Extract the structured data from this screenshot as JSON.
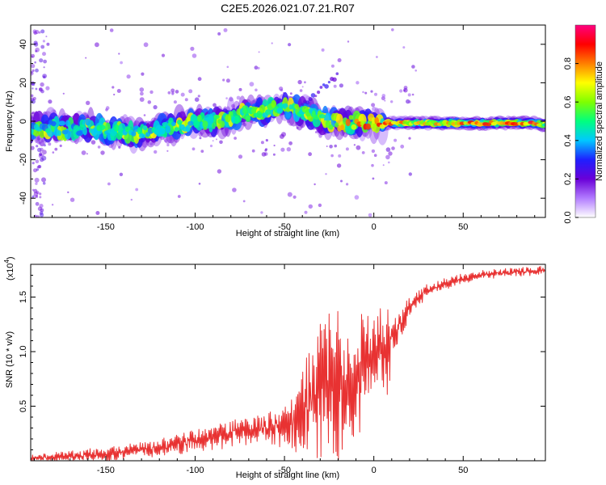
{
  "title": "C2E5.2026.021.07.21.R07",
  "chart_data": [
    {
      "type": "heatmap",
      "name": "spectrogram",
      "xlabel": "Height of straight line (km)",
      "ylabel": "Frequency (Hz)",
      "xlim": [
        -192,
        96
      ],
      "ylim": [
        -50,
        50
      ],
      "xticks": [
        -150,
        -100,
        -50,
        0,
        50
      ],
      "xtick_labels": [
        "-150",
        "-100",
        "-50",
        "0",
        "50"
      ],
      "yticks": [
        -40,
        -20,
        0,
        20,
        40
      ],
      "ytick_labels": [
        "-40",
        "-20",
        "0",
        "20",
        "40"
      ],
      "colorbar": {
        "label": "Normalized spectral amplitude",
        "range": [
          0,
          1
        ],
        "ticks": [
          0,
          0.2,
          0.4,
          0.6,
          0.8
        ],
        "tick_labels": [
          "0.0",
          "0.2",
          "0.4",
          "0.6",
          "0.8"
        ],
        "colors": [
          "#ffffff",
          "#b27cff",
          "#6a00d8",
          "#1f1fff",
          "#00c8ff",
          "#00ff7f",
          "#7fff00",
          "#ffff00",
          "#ff7f00",
          "#ff0000",
          "#ff0080"
        ]
      },
      "ridge": {
        "x": [
          -192,
          -180,
          -170,
          -160,
          -150,
          -140,
          -130,
          -120,
          -110,
          -100,
          -90,
          -80,
          -70,
          -60,
          -50,
          -40,
          -30,
          -20,
          -10,
          0,
          10,
          20,
          30,
          40,
          50,
          60,
          70,
          80,
          90,
          96
        ],
        "freq": [
          -3,
          -3,
          -4,
          -3,
          -5,
          -6,
          -6,
          -3,
          -2,
          0,
          -1,
          2,
          4,
          6,
          7,
          5,
          1,
          -1,
          -1,
          -1,
          -1,
          -1,
          -1,
          -1,
          -1,
          -1,
          -1,
          -1,
          -1,
          -2
        ],
        "amplitude": [
          0.4,
          0.45,
          0.45,
          0.45,
          0.5,
          0.5,
          0.5,
          0.45,
          0.5,
          0.5,
          0.5,
          0.55,
          0.55,
          0.55,
          0.55,
          0.55,
          0.55,
          0.7,
          0.8,
          0.85,
          0.85,
          0.7,
          0.75,
          0.75,
          0.8,
          0.85,
          0.9,
          0.92,
          0.92,
          0.5
        ]
      }
    },
    {
      "type": "line",
      "name": "snr",
      "xlabel": "Height of straight line (km)",
      "ylabel": "SNR (10 * v/v)",
      "scale_label": "(x10",
      "scale_exponent": "4",
      "scale_suffix": ")",
      "xlim": [
        -192,
        96
      ],
      "ylim": [
        0,
        1.8
      ],
      "xticks": [
        -150,
        -100,
        -50,
        0,
        50
      ],
      "xtick_labels": [
        "-150",
        "-100",
        "-50",
        "0",
        "50"
      ],
      "yticks": [
        0.5,
        1.0,
        1.5
      ],
      "ytick_labels": [
        "0.5",
        "1.0",
        "1.5"
      ],
      "color": "#e83232",
      "x": [
        -192,
        -180,
        -170,
        -160,
        -150,
        -140,
        -130,
        -120,
        -110,
        -100,
        -90,
        -80,
        -70,
        -60,
        -50,
        -45,
        -40,
        -35,
        -30,
        -25,
        -20,
        -15,
        -10,
        -5,
        0,
        5,
        8,
        10,
        15,
        20,
        25,
        30,
        40,
        50,
        60,
        70,
        80,
        90,
        96
      ],
      "y": [
        0.02,
        0.03,
        0.04,
        0.05,
        0.06,
        0.08,
        0.1,
        0.12,
        0.15,
        0.18,
        0.22,
        0.25,
        0.28,
        0.3,
        0.32,
        0.36,
        0.42,
        0.55,
        0.7,
        0.8,
        0.75,
        0.6,
        0.65,
        0.9,
        1.05,
        1.08,
        1.0,
        1.15,
        1.25,
        1.4,
        1.5,
        1.56,
        1.62,
        1.67,
        1.7,
        1.72,
        1.73,
        1.74,
        1.74
      ],
      "noise_amp": [
        0.04,
        0.05,
        0.05,
        0.06,
        0.07,
        0.07,
        0.08,
        0.09,
        0.1,
        0.1,
        0.12,
        0.13,
        0.14,
        0.16,
        0.2,
        0.3,
        0.45,
        0.55,
        0.75,
        0.8,
        0.75,
        0.6,
        0.55,
        0.5,
        0.35,
        0.4,
        0.5,
        0.25,
        0.15,
        0.1,
        0.08,
        0.06,
        0.05,
        0.05,
        0.04,
        0.04,
        0.04,
        0.04,
        0.04
      ]
    }
  ]
}
